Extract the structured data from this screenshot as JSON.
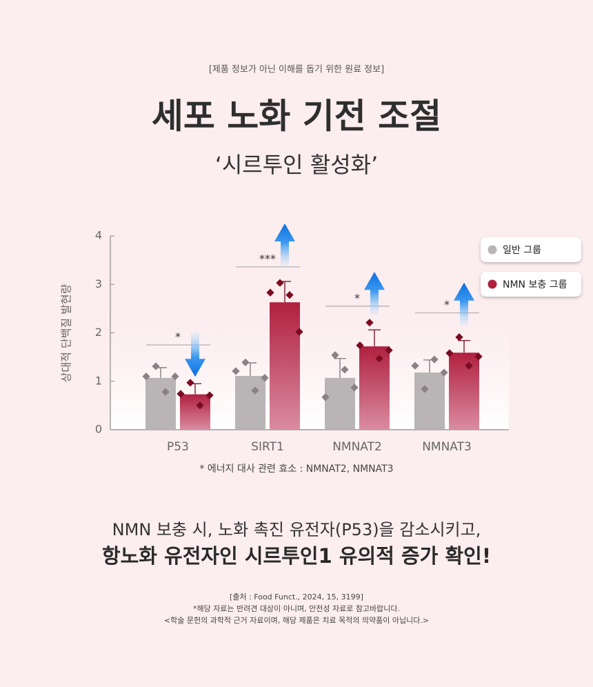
{
  "header": {
    "note": "[제품 정보가 아닌 이해를 돕기 위한 원료 정보]",
    "title": "세포 노화 기전 조절",
    "subtitle": "‘시르투인 활성화’"
  },
  "chart_data": {
    "type": "bar",
    "y_label": "상대적 단백질 발현량",
    "categories": [
      "P53",
      "SIRT1",
      "NMNAT2",
      "NMNAT3"
    ],
    "series": [
      {
        "name": "일반 그룹",
        "color": "#b9b4b6",
        "point_color": "#8c8185",
        "values": [
          1.07,
          1.11,
          1.07,
          1.18
        ],
        "errors": [
          0.21,
          0.27,
          0.4,
          0.26
        ],
        "points": [
          [
            1.1,
            1.31,
            0.78,
            1.1
          ],
          [
            1.21,
            1.39,
            0.81,
            1.07
          ],
          [
            0.67,
            1.54,
            1.24,
            0.87
          ],
          [
            1.32,
            0.84,
            1.45,
            1.18
          ]
        ]
      },
      {
        "name": "NMN 보충 그룹",
        "color": "#b0203f",
        "point_color": "#7a0c22",
        "values": [
          0.73,
          2.63,
          1.72,
          1.59
        ],
        "errors": [
          0.22,
          0.43,
          0.34,
          0.25
        ],
        "points": [
          [
            0.74,
            0.97,
            0.5,
            0.71
          ],
          [
            2.83,
            3.03,
            2.78,
            2.02
          ],
          [
            1.74,
            2.21,
            1.47,
            1.64
          ],
          [
            1.58,
            1.91,
            1.32,
            1.51
          ]
        ]
      }
    ],
    "significance": [
      {
        "label": "*",
        "level": 1.75
      },
      {
        "label": "***",
        "level": 3.36
      },
      {
        "label": "*",
        "level": 2.55
      },
      {
        "label": "*",
        "level": 2.41
      }
    ],
    "ylim": [
      0,
      4
    ],
    "yticks": [
      0,
      1,
      2,
      3,
      4
    ],
    "legend_position": "upper right",
    "footnote": "* 에너지 대사 관련 효소 : NMNAT2, NMNAT3"
  },
  "summary": {
    "line1": "NMN 보충 시, 노화 촉진 유전자(P53)을 감소시키고,",
    "line2": "항노화 유전자인 시르투인1 유의적 증가 확인!"
  },
  "source": {
    "lines": [
      "[출처 : Food Funct., 2024, 15, 3199]",
      "*해당 자료는 반려견 대상이 아니며, 안전성 자료로 참고바랍니다.",
      "<학술 문헌의 과학적 근거 자료이며, 해당 제품은 치료 목적의 의약품이 아닙니다.>"
    ]
  }
}
